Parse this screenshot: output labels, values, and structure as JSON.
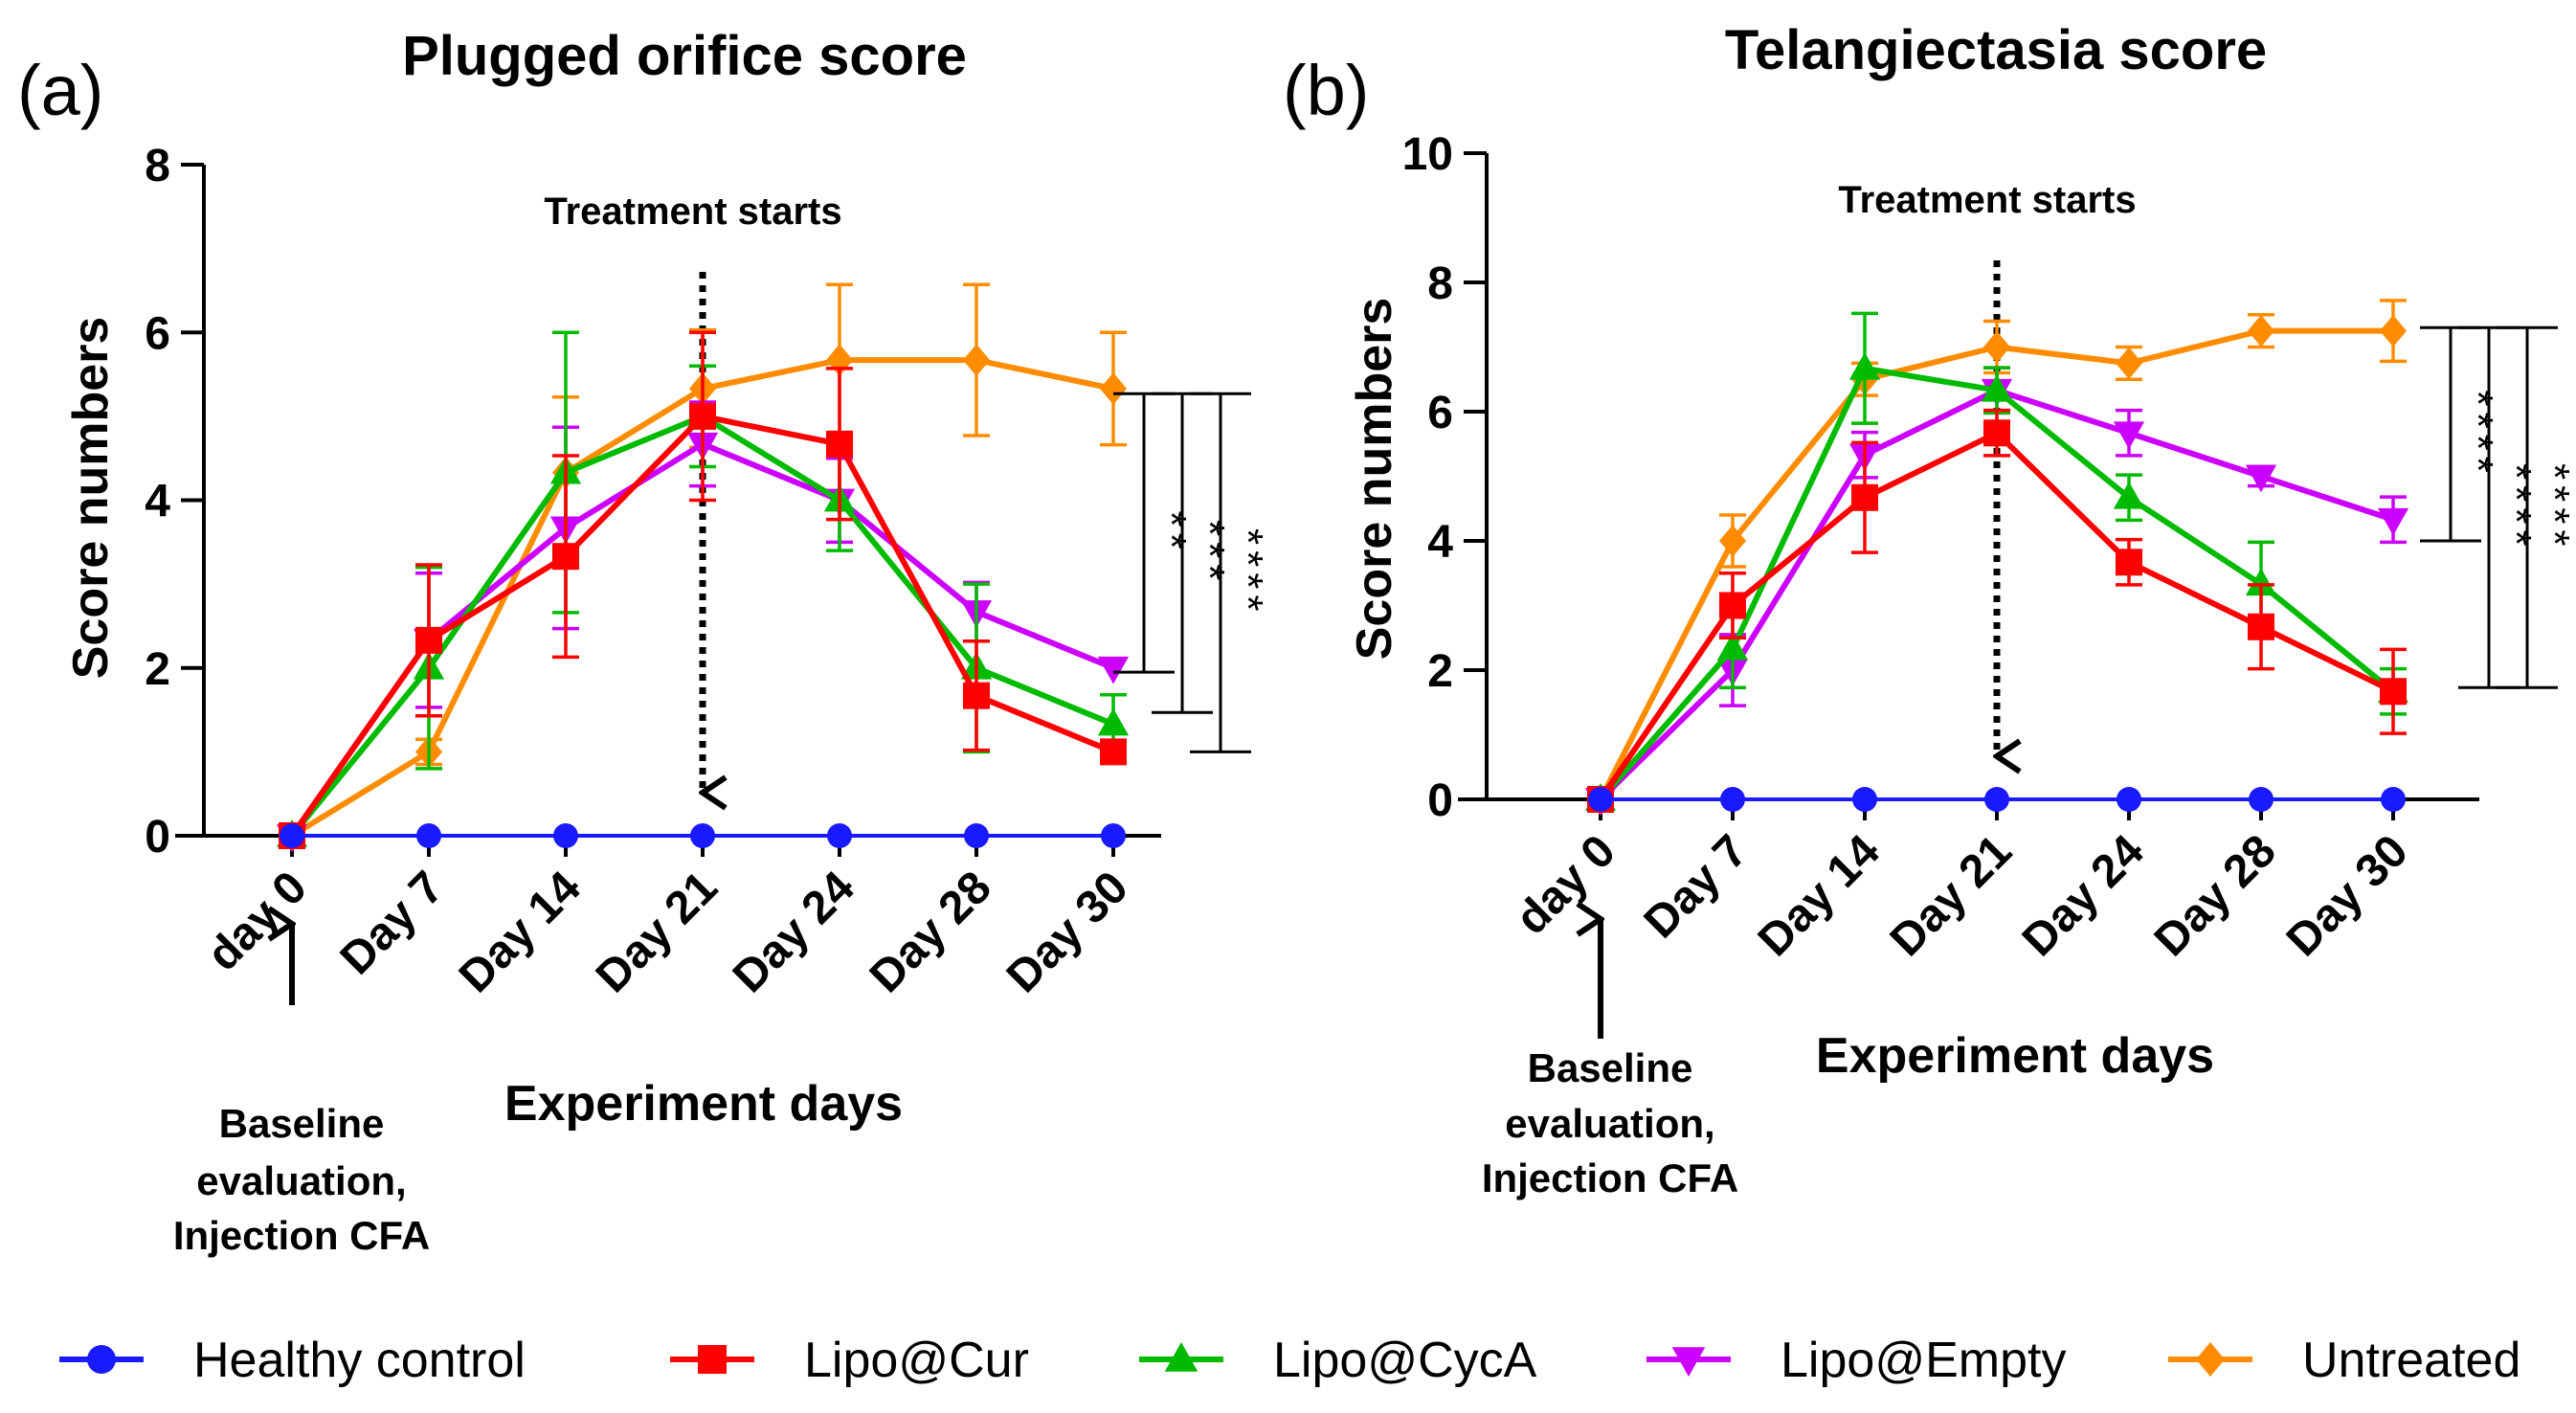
{
  "chart_data": [
    {
      "panel": "(a)",
      "type": "line",
      "title": "Plugged orifice score",
      "xlabel": "Experiment days",
      "ylabel": "Score numbers",
      "categories": [
        "day 0",
        "Day 7",
        "Day 14",
        "Day 21",
        "Day 24",
        "Day 28",
        "Day 30"
      ],
      "ylim": [
        0,
        8
      ],
      "yticks": [
        "0",
        "2",
        "4",
        "6",
        "8"
      ],
      "treatment_label": "Treatment starts",
      "treatment_category": "Day 21",
      "baseline_note": [
        "Baseline",
        "evaluation,",
        "Injection CFA"
      ],
      "series": [
        {
          "key": "healthy",
          "values": [
            0,
            0,
            0,
            0,
            0,
            0,
            0
          ],
          "errors": [
            0,
            0,
            0,
            0,
            0,
            0,
            0
          ]
        },
        {
          "key": "cur",
          "values": [
            0,
            2.33,
            3.33,
            5.0,
            4.67,
            1.67,
            1.0
          ],
          "errors": [
            0,
            0.9,
            1.2,
            1.0,
            0.9,
            0.65,
            0
          ]
        },
        {
          "key": "cyca",
          "values": [
            0,
            2.0,
            4.33,
            5.0,
            4.0,
            2.0,
            1.33
          ],
          "errors": [
            0,
            1.2,
            1.67,
            0.6,
            0.6,
            1.0,
            0.35
          ]
        },
        {
          "key": "empty",
          "values": [
            0,
            2.33,
            3.67,
            4.67,
            4.0,
            2.67,
            2.0
          ],
          "errors": [
            0,
            0.8,
            1.2,
            0.5,
            0.5,
            0.35,
            0
          ]
        },
        {
          "key": "untreated",
          "values": [
            0,
            1.0,
            4.33,
            5.33,
            5.67,
            5.67,
            5.33
          ],
          "errors": [
            0,
            0.15,
            0.9,
            0.7,
            0.9,
            0.9,
            0.67
          ]
        }
      ],
      "significance": [
        {
          "label": "**",
          "from_series": "untreated",
          "to_series": "empty",
          "top": 5.27,
          "bottom": 1.95
        },
        {
          "label": "***",
          "from_series": "untreated",
          "to_series": "cyca",
          "top": 5.27,
          "bottom": 1.47
        },
        {
          "label": "****",
          "from_series": "untreated",
          "to_series": "cur",
          "top": 5.27,
          "bottom": 1.0
        }
      ]
    },
    {
      "panel": "(b)",
      "type": "line",
      "title": "Telangiectasia score",
      "xlabel": "Experiment days",
      "ylabel": "Score numbers",
      "categories": [
        "day 0",
        "Day 7",
        "Day 14",
        "Day 21",
        "Day 24",
        "Day 28",
        "Day 30"
      ],
      "ylim": [
        0,
        10
      ],
      "yticks": [
        "0",
        "2",
        "4",
        "6",
        "8",
        "10"
      ],
      "treatment_label": "Treatment starts",
      "treatment_category": "Day 21",
      "baseline_note": [
        "Baseline",
        "evaluation,",
        "Injection CFA"
      ],
      "series": [
        {
          "key": "healthy",
          "values": [
            0,
            0,
            0,
            0,
            0,
            0,
            0
          ],
          "errors": [
            0,
            0,
            0,
            0,
            0,
            0,
            0
          ]
        },
        {
          "key": "cur",
          "values": [
            0,
            3.0,
            4.67,
            5.67,
            3.67,
            2.67,
            1.67
          ],
          "errors": [
            0,
            0.5,
            0.85,
            0.35,
            0.35,
            0.65,
            0.65
          ]
        },
        {
          "key": "cyca",
          "values": [
            0,
            2.33,
            6.67,
            6.33,
            4.67,
            3.33,
            1.67
          ],
          "errors": [
            0,
            0.6,
            0.85,
            0.35,
            0.35,
            0.65,
            0.35
          ]
        },
        {
          "key": "empty",
          "values": [
            0,
            2.0,
            5.33,
            6.33,
            5.67,
            5.0,
            4.33
          ],
          "errors": [
            0,
            0.55,
            0.35,
            0.35,
            0.35,
            0.15,
            0.35
          ]
        },
        {
          "key": "untreated",
          "values": [
            0,
            4.0,
            6.5,
            7.0,
            6.75,
            7.25,
            7.25
          ],
          "errors": [
            0,
            0.4,
            0.25,
            0.4,
            0.25,
            0.25,
            0.47
          ]
        }
      ],
      "significance": [
        {
          "label": "****",
          "from_series": "untreated",
          "to_series": "empty",
          "top": 7.3,
          "bottom": 4.0
        },
        {
          "label": "****",
          "from_series": "untreated",
          "to_series": "cyca",
          "top": 7.3,
          "bottom": 1.73
        },
        {
          "label": "****",
          "from_series": "untreated",
          "to_series": "cur",
          "top": 7.3,
          "bottom": 1.73
        }
      ]
    }
  ],
  "legend": [
    {
      "key": "healthy",
      "label": "Healthy control",
      "color": "#1a1aff",
      "marker": "circle"
    },
    {
      "key": "cur",
      "label": "Lipo@Cur",
      "color": "#ff0000",
      "marker": "square"
    },
    {
      "key": "cyca",
      "label": "Lipo@CycA",
      "color": "#00bb00",
      "marker": "triangle-up"
    },
    {
      "key": "empty",
      "label": "Lipo@Empty",
      "color": "#cc00ff",
      "marker": "triangle-down"
    },
    {
      "key": "untreated",
      "label": "Untreated",
      "color": "#ff8c00",
      "marker": "diamond"
    }
  ]
}
